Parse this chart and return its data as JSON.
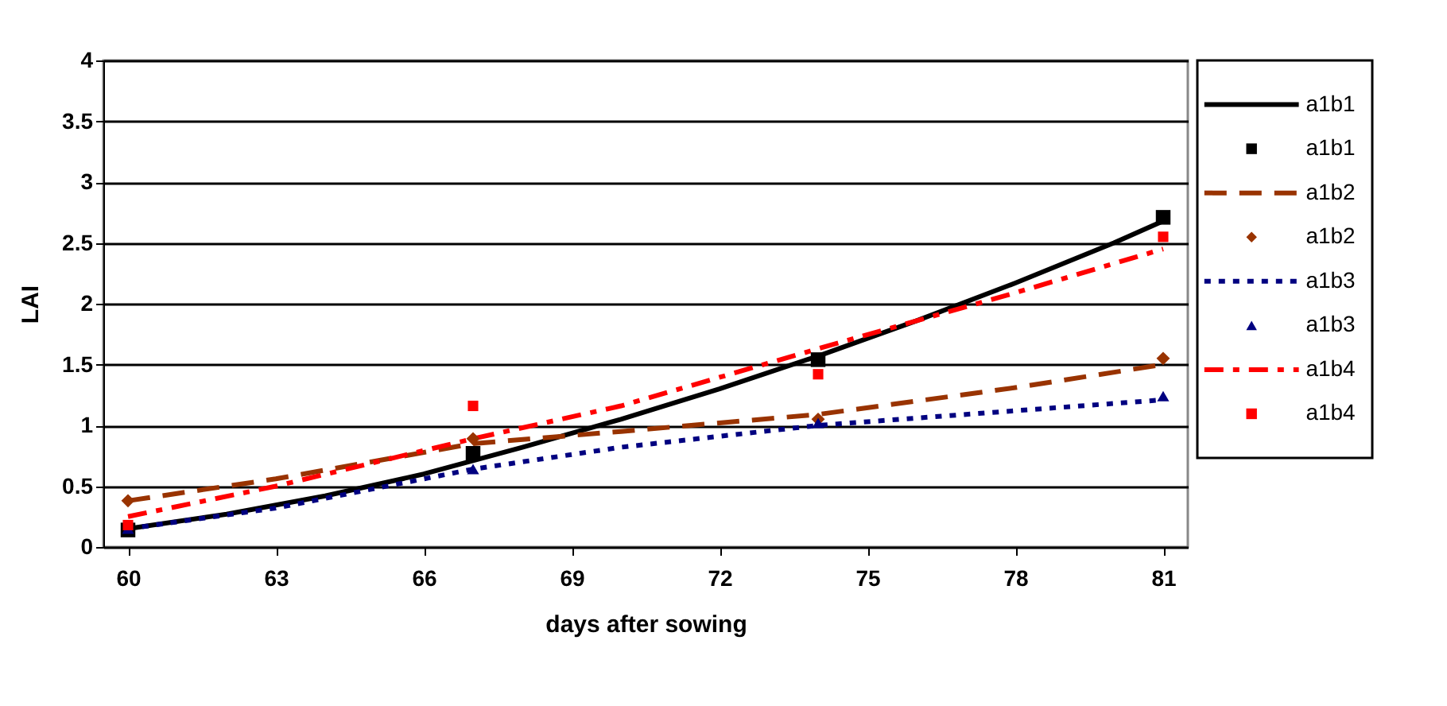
{
  "chart_data": {
    "type": "line",
    "xlabel": "days after sowing",
    "ylabel": "LAI",
    "xlim": [
      59.5,
      81.5
    ],
    "xticks": [
      60,
      63,
      66,
      69,
      72,
      75,
      78,
      81
    ],
    "ylim": [
      0,
      4
    ],
    "yticks": [
      0,
      0.5,
      1,
      1.5,
      2,
      2.5,
      3,
      3.5,
      4
    ],
    "grid": "y",
    "legend": "right",
    "series": [
      {
        "name": "a1b1",
        "type": "line",
        "color": "#000000",
        "line_style": "solid",
        "x": [
          60,
          62,
          64,
          66,
          68,
          70,
          72,
          74,
          76,
          78,
          80,
          81
        ],
        "values": [
          0.15,
          0.27,
          0.42,
          0.6,
          0.82,
          1.05,
          1.3,
          1.57,
          1.86,
          2.17,
          2.5,
          2.68
        ]
      },
      {
        "name": "a1b1",
        "type": "scatter",
        "color": "#000000",
        "marker": "square",
        "x": [
          60,
          67,
          74,
          81
        ],
        "values": [
          0.14,
          0.77,
          1.54,
          2.71
        ]
      },
      {
        "name": "a1b2",
        "type": "line",
        "color": "#993300",
        "line_style": "dashed",
        "x": [
          60,
          63,
          67,
          70,
          74,
          78,
          81
        ],
        "values": [
          0.38,
          0.56,
          0.85,
          0.95,
          1.09,
          1.31,
          1.5
        ]
      },
      {
        "name": "a1b2",
        "type": "scatter",
        "color": "#993300",
        "marker": "diamond",
        "x": [
          60,
          67,
          74,
          81
        ],
        "values": [
          0.38,
          0.89,
          1.05,
          1.55
        ]
      },
      {
        "name": "a1b3",
        "type": "line",
        "color": "#000080",
        "line_style": "dotted",
        "x": [
          60,
          63,
          67,
          70,
          74,
          78,
          81
        ],
        "values": [
          0.15,
          0.32,
          0.64,
          0.82,
          1.0,
          1.12,
          1.21
        ]
      },
      {
        "name": "a1b3",
        "type": "scatter",
        "color": "#000080",
        "marker": "triangle",
        "x": [
          60,
          67,
          74,
          81
        ],
        "values": [
          0.15,
          0.64,
          1.02,
          1.24
        ]
      },
      {
        "name": "a1b4",
        "type": "line",
        "color": "#ff0000",
        "line_style": "dashdot",
        "x": [
          60,
          63,
          67,
          70,
          74,
          78,
          81
        ],
        "values": [
          0.25,
          0.5,
          0.89,
          1.16,
          1.63,
          2.09,
          2.45
        ]
      },
      {
        "name": "a1b4",
        "type": "scatter",
        "color": "#ff0000",
        "marker": "square",
        "x": [
          60,
          67,
          74,
          81
        ],
        "values": [
          0.18,
          1.16,
          1.42,
          2.55
        ]
      }
    ]
  }
}
